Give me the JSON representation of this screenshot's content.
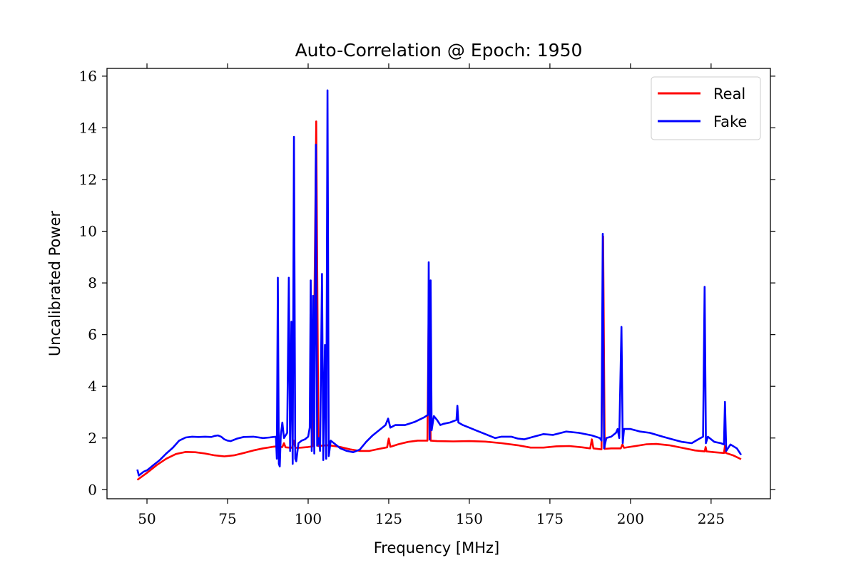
{
  "chart_data": {
    "type": "line",
    "title": "Auto-Correlation @ Epoch: 1950",
    "xlabel": "Frequency [MHz]",
    "ylabel": "Uncalibrated Power",
    "xlim": [
      37.6,
      243.4
    ],
    "ylim": [
      -0.35,
      16.3
    ],
    "xticks": [
      50,
      75,
      100,
      125,
      150,
      175,
      200,
      225
    ],
    "yticks": [
      0,
      2,
      4,
      6,
      8,
      10,
      12,
      14,
      16
    ],
    "grid": false,
    "legend": {
      "position": "top-right"
    },
    "series": [
      {
        "name": "Real",
        "color": "#ff0000",
        "points": [
          [
            47,
            0.38
          ],
          [
            50,
            0.65
          ],
          [
            53,
            0.95
          ],
          [
            56,
            1.2
          ],
          [
            59,
            1.38
          ],
          [
            62,
            1.46
          ],
          [
            65,
            1.45
          ],
          [
            68,
            1.4
          ],
          [
            71,
            1.33
          ],
          [
            74,
            1.29
          ],
          [
            77,
            1.33
          ],
          [
            80,
            1.42
          ],
          [
            83,
            1.52
          ],
          [
            86,
            1.6
          ],
          [
            89,
            1.66
          ],
          [
            90.5,
            1.68
          ],
          [
            90.8,
            1.85
          ],
          [
            91.1,
            1.65
          ],
          [
            92,
            1.65
          ],
          [
            92.5,
            1.8
          ],
          [
            93,
            1.64
          ],
          [
            94,
            1.63
          ],
          [
            95,
            1.62
          ],
          [
            95.5,
            1.9
          ],
          [
            96,
            1.62
          ],
          [
            97,
            1.62
          ],
          [
            98,
            1.63
          ],
          [
            100,
            1.65
          ],
          [
            101.5,
            1.68
          ],
          [
            102.5,
            14.25
          ],
          [
            103.2,
            1.69
          ],
          [
            104,
            1.7
          ],
          [
            106,
            1.72
          ],
          [
            107,
            1.71
          ],
          [
            110,
            1.65
          ],
          [
            113,
            1.56
          ],
          [
            116,
            1.5
          ],
          [
            119,
            1.5
          ],
          [
            122,
            1.58
          ],
          [
            124.5,
            1.64
          ],
          [
            125,
            1.98
          ],
          [
            125.5,
            1.66
          ],
          [
            128,
            1.76
          ],
          [
            131,
            1.85
          ],
          [
            134,
            1.9
          ],
          [
            137,
            1.9
          ],
          [
            137.5,
            8.1
          ],
          [
            138,
            1.9
          ],
          [
            140,
            1.88
          ],
          [
            145,
            1.87
          ],
          [
            150,
            1.88
          ],
          [
            155,
            1.86
          ],
          [
            160,
            1.8
          ],
          [
            165,
            1.72
          ],
          [
            169,
            1.63
          ],
          [
            173,
            1.63
          ],
          [
            177,
            1.68
          ],
          [
            181,
            1.69
          ],
          [
            185,
            1.64
          ],
          [
            187.5,
            1.6
          ],
          [
            188,
            1.95
          ],
          [
            188.5,
            1.6
          ],
          [
            191,
            1.56
          ],
          [
            191.5,
            9.8
          ],
          [
            192,
            1.58
          ],
          [
            194,
            1.6
          ],
          [
            197,
            1.6
          ],
          [
            197.5,
            1.75
          ],
          [
            198,
            1.62
          ],
          [
            201,
            1.68
          ],
          [
            205,
            1.76
          ],
          [
            208,
            1.77
          ],
          [
            212,
            1.72
          ],
          [
            216,
            1.62
          ],
          [
            220,
            1.52
          ],
          [
            223,
            1.48
          ],
          [
            223.3,
            1.65
          ],
          [
            223.6,
            1.48
          ],
          [
            226,
            1.45
          ],
          [
            229,
            1.42
          ],
          [
            229.3,
            1.7
          ],
          [
            229.6,
            1.42
          ],
          [
            232,
            1.32
          ],
          [
            234.3,
            1.18
          ]
        ]
      },
      {
        "name": "Fake",
        "color": "#0000ff",
        "points": [
          [
            47,
            0.78
          ],
          [
            47.5,
            0.55
          ],
          [
            48,
            0.6
          ],
          [
            49,
            0.7
          ],
          [
            50,
            0.75
          ],
          [
            51,
            0.85
          ],
          [
            52,
            0.95
          ],
          [
            54,
            1.15
          ],
          [
            56,
            1.4
          ],
          [
            58,
            1.62
          ],
          [
            60,
            1.9
          ],
          [
            62,
            2.02
          ],
          [
            64,
            2.05
          ],
          [
            66,
            2.04
          ],
          [
            68,
            2.05
          ],
          [
            70,
            2.04
          ],
          [
            71,
            2.08
          ],
          [
            72,
            2.1
          ],
          [
            73,
            2.05
          ],
          [
            74,
            1.95
          ],
          [
            75,
            1.9
          ],
          [
            76,
            1.88
          ],
          [
            78,
            1.98
          ],
          [
            80,
            2.04
          ],
          [
            83,
            2.05
          ],
          [
            86,
            2.0
          ],
          [
            88,
            2.02
          ],
          [
            90,
            2.05
          ],
          [
            90.3,
            1.2
          ],
          [
            90.6,
            8.2
          ],
          [
            90.9,
            1.0
          ],
          [
            91.2,
            0.9
          ],
          [
            91.5,
            2.1
          ],
          [
            92,
            2.6
          ],
          [
            92.5,
            2.0
          ],
          [
            93.5,
            2.2
          ],
          [
            94,
            8.2
          ],
          [
            94.4,
            1.5
          ],
          [
            94.8,
            6.5
          ],
          [
            95.2,
            1.0
          ],
          [
            95.6,
            13.65
          ],
          [
            96,
            1.2
          ],
          [
            96.3,
            1.1
          ],
          [
            97,
            1.8
          ],
          [
            98,
            1.9
          ],
          [
            99,
            1.95
          ],
          [
            100,
            2.05
          ],
          [
            100.5,
            2.4
          ],
          [
            100.8,
            8.1
          ],
          [
            101.1,
            1.5
          ],
          [
            101.5,
            7.5
          ],
          [
            101.9,
            1.4
          ],
          [
            102.4,
            13.35
          ],
          [
            102.8,
            1.7
          ],
          [
            103.3,
            2.0
          ],
          [
            103.7,
            1.5
          ],
          [
            104.3,
            8.35
          ],
          [
            104.7,
            1.15
          ],
          [
            105.2,
            5.6
          ],
          [
            105.6,
            1.2
          ],
          [
            106,
            15.45
          ],
          [
            106.4,
            1.3
          ],
          [
            107,
            1.9
          ],
          [
            108,
            1.8
          ],
          [
            110,
            1.6
          ],
          [
            112,
            1.5
          ],
          [
            114,
            1.45
          ],
          [
            116,
            1.55
          ],
          [
            118,
            1.85
          ],
          [
            120,
            2.1
          ],
          [
            122,
            2.3
          ],
          [
            124,
            2.5
          ],
          [
            124.8,
            2.75
          ],
          [
            125.5,
            2.4
          ],
          [
            127,
            2.5
          ],
          [
            130,
            2.5
          ],
          [
            133,
            2.62
          ],
          [
            136,
            2.8
          ],
          [
            137.2,
            2.9
          ],
          [
            137.4,
            8.8
          ],
          [
            137.7,
            1.95
          ],
          [
            138,
            8.1
          ],
          [
            138.3,
            2.3
          ],
          [
            139,
            2.85
          ],
          [
            140,
            2.7
          ],
          [
            141,
            2.5
          ],
          [
            142,
            2.55
          ],
          [
            144,
            2.6
          ],
          [
            146,
            2.7
          ],
          [
            146.3,
            3.25
          ],
          [
            146.6,
            2.6
          ],
          [
            148,
            2.5
          ],
          [
            150,
            2.4
          ],
          [
            152,
            2.3
          ],
          [
            155,
            2.15
          ],
          [
            158,
            2.0
          ],
          [
            160,
            2.05
          ],
          [
            163,
            2.05
          ],
          [
            165,
            1.98
          ],
          [
            167,
            1.95
          ],
          [
            170,
            2.05
          ],
          [
            173,
            2.15
          ],
          [
            176,
            2.12
          ],
          [
            180,
            2.25
          ],
          [
            184,
            2.2
          ],
          [
            188,
            2.1
          ],
          [
            190.5,
            2.0
          ],
          [
            191,
            1.9
          ],
          [
            191.4,
            9.9
          ],
          [
            191.8,
            1.6
          ],
          [
            192.5,
            2.0
          ],
          [
            194,
            2.05
          ],
          [
            195.5,
            2.2
          ],
          [
            196,
            2.35
          ],
          [
            196.5,
            2.0
          ],
          [
            197.2,
            6.3
          ],
          [
            197.6,
            1.8
          ],
          [
            198,
            2.35
          ],
          [
            200,
            2.35
          ],
          [
            203,
            2.25
          ],
          [
            206,
            2.2
          ],
          [
            210,
            2.05
          ],
          [
            213,
            1.95
          ],
          [
            216,
            1.85
          ],
          [
            219,
            1.8
          ],
          [
            221,
            1.95
          ],
          [
            222.5,
            2.05
          ],
          [
            223,
            7.85
          ],
          [
            223.4,
            1.8
          ],
          [
            224,
            2.05
          ],
          [
            226,
            1.85
          ],
          [
            228,
            1.8
          ],
          [
            229,
            1.75
          ],
          [
            229.3,
            3.4
          ],
          [
            229.7,
            1.5
          ],
          [
            231,
            1.75
          ],
          [
            233,
            1.6
          ],
          [
            234.3,
            1.35
          ]
        ]
      }
    ]
  }
}
